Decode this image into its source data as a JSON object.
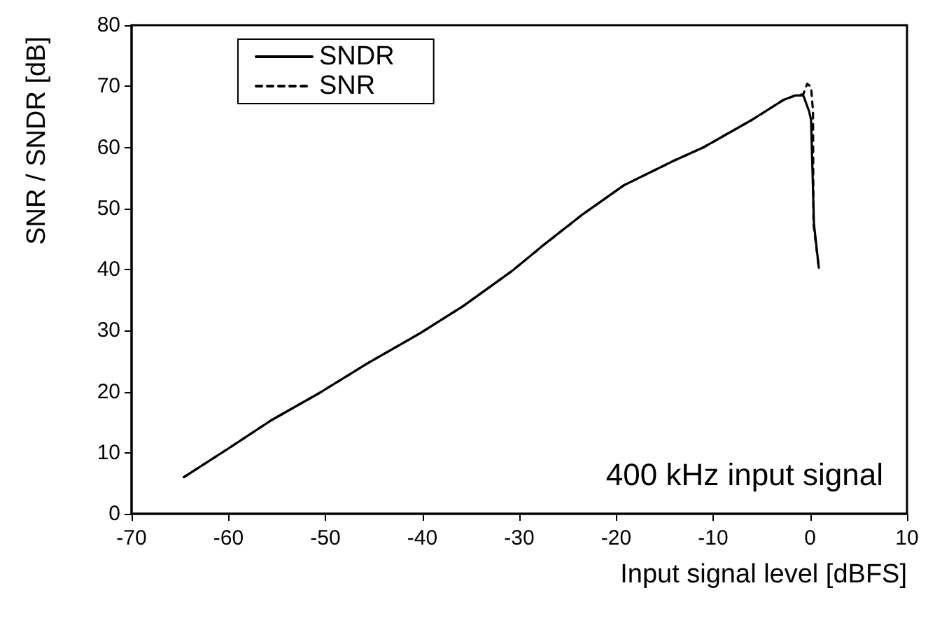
{
  "chart_data": {
    "type": "line",
    "xlabel": "Input signal level [dBFS]",
    "ylabel": "SNR / SNDR [dB]",
    "xlim": [
      -70,
      10
    ],
    "xticks": [
      -70,
      -60,
      -50,
      -40,
      -30,
      -20,
      -10,
      0,
      10
    ],
    "ylim": [
      0,
      80
    ],
    "yticks": [
      0,
      10,
      20,
      30,
      40,
      50,
      60,
      70,
      80
    ],
    "grid": false,
    "legend": "top left",
    "marker": "none",
    "annotations": [
      "400 kHz input signal"
    ],
    "series": [
      {
        "name": "SNDR",
        "color": "#000000",
        "line_style": "solid",
        "x": [
          -64.6,
          -60.1,
          -55.6,
          -50.6,
          -45.7,
          -40.3,
          -35.8,
          -30.8,
          -27.5,
          -23.4,
          -19.2,
          -14.2,
          -11,
          -6,
          -2.7,
          -1.5,
          -0.7,
          -0.1,
          0.1,
          0.4,
          0.9
        ],
        "values": [
          6,
          10.6,
          15.3,
          19.8,
          24.6,
          29.5,
          34,
          39.7,
          44,
          49.1,
          53.8,
          57.7,
          60,
          64.5,
          67.8,
          68.5,
          68.5,
          65.9,
          64.5,
          47.5,
          40.3
        ]
      },
      {
        "name": "SNR",
        "color": "#000000",
        "line_style": "dashed",
        "x": [
          -64.6,
          -60.1,
          -55.6,
          -50.6,
          -45.7,
          -40.3,
          -35.8,
          -30.8,
          -27.5,
          -23.4,
          -19.2,
          -14.2,
          -11,
          -6,
          -2.7,
          -1.5,
          -0.7,
          -0.3,
          0.1,
          0.3,
          0.35,
          0.9
        ],
        "values": [
          6,
          10.6,
          15.3,
          19.8,
          24.6,
          29.5,
          34,
          39.7,
          44,
          49.1,
          53.8,
          57.7,
          60,
          64.5,
          67.8,
          68.5,
          68.7,
          70.4,
          69.9,
          65.9,
          47.5,
          40.3
        ]
      }
    ]
  }
}
